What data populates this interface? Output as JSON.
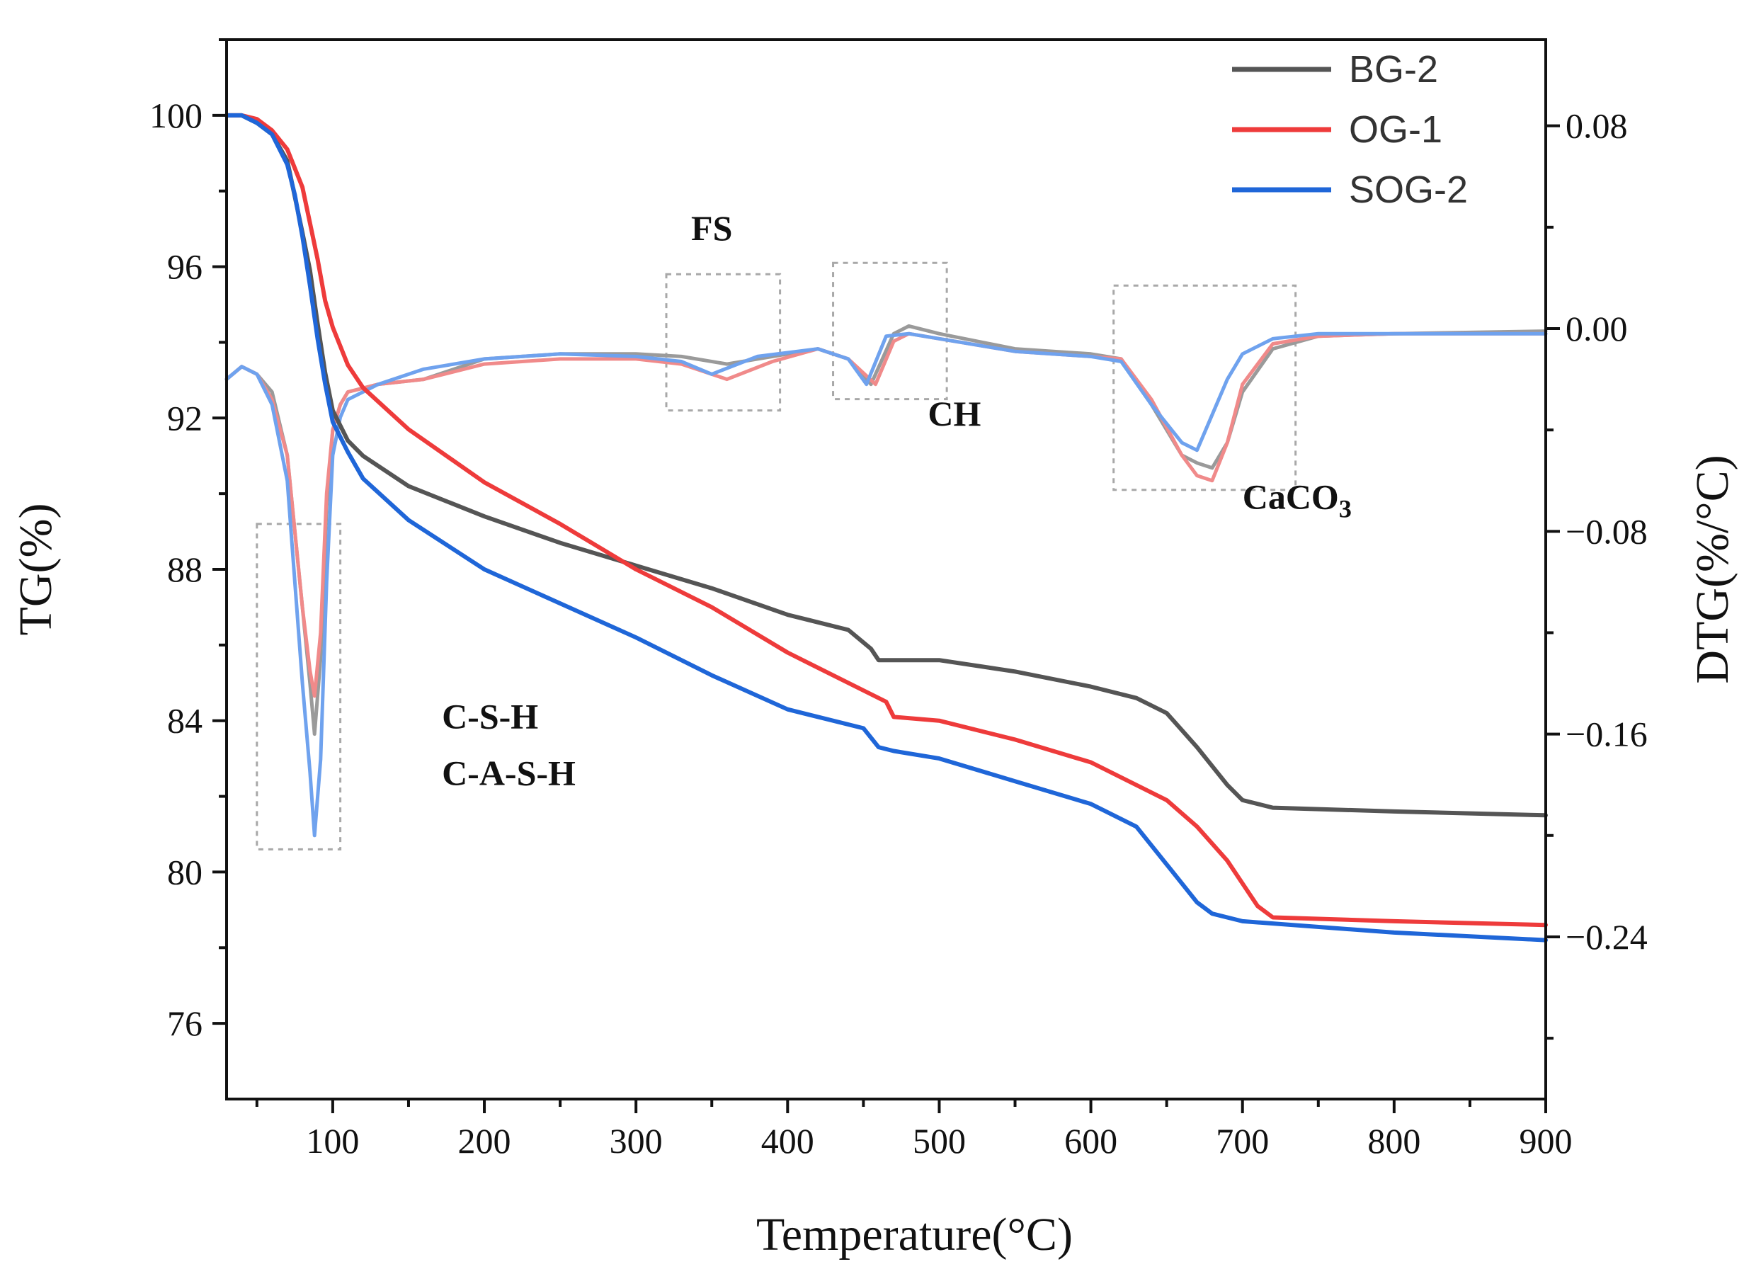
{
  "chart_data": {
    "type": "line",
    "xlabel": "Temperature(°C)",
    "ylabel_left": "TG(%)",
    "ylabel_right": "DTG(%/°C)",
    "xlim": [
      30,
      900
    ],
    "ylim_left": [
      74,
      102
    ],
    "ylim_right": [
      -0.304,
      0.114
    ],
    "x_ticks": [
      100,
      200,
      300,
      400,
      500,
      600,
      700,
      800,
      900
    ],
    "y_ticks_left": [
      76,
      80,
      84,
      88,
      92,
      96,
      100
    ],
    "y_ticks_right": [
      0.08,
      0.0,
      -0.08,
      -0.16,
      -0.24
    ],
    "y_tick_labels_right": [
      "0.08",
      "0.00",
      "−0.08",
      "−0.16",
      "−0.24"
    ],
    "legend": {
      "position": "top-right",
      "entries": [
        "BG-2",
        "OG-1",
        "SOG-2"
      ]
    },
    "series_colors": {
      "BG-2": "#555555",
      "OG-1": "#ee3b3b",
      "SOG-2": "#1f66d8"
    },
    "dtg_colors": {
      "BG-2": "#9a9a9a",
      "OG-1": "#f08a8a",
      "SOG-2": "#6fa2ee"
    },
    "series": [
      {
        "name": "BG-2",
        "axis": "left",
        "kind": "TG",
        "x": [
          30,
          40,
          50,
          60,
          70,
          80,
          85,
          90,
          95,
          100,
          110,
          120,
          150,
          200,
          250,
          300,
          350,
          400,
          440,
          455,
          460,
          500,
          550,
          600,
          630,
          650,
          670,
          690,
          700,
          720,
          800,
          900
        ],
        "y": [
          100.0,
          100.0,
          99.8,
          99.5,
          98.8,
          96.9,
          95.9,
          94.5,
          93.2,
          92.2,
          91.4,
          91.0,
          90.2,
          89.4,
          88.7,
          88.1,
          87.5,
          86.8,
          86.4,
          85.9,
          85.6,
          85.6,
          85.3,
          84.9,
          84.6,
          84.2,
          83.3,
          82.3,
          81.9,
          81.7,
          81.6,
          81.5
        ]
      },
      {
        "name": "OG-1",
        "axis": "left",
        "kind": "TG",
        "x": [
          30,
          40,
          50,
          60,
          70,
          80,
          90,
          95,
          100,
          110,
          120,
          150,
          200,
          250,
          300,
          350,
          400,
          450,
          465,
          470,
          500,
          550,
          600,
          650,
          670,
          690,
          700,
          710,
          720,
          800,
          900
        ],
        "y": [
          100.0,
          100.0,
          99.9,
          99.6,
          99.1,
          98.1,
          96.2,
          95.1,
          94.4,
          93.4,
          92.8,
          91.7,
          90.3,
          89.2,
          88.0,
          87.0,
          85.8,
          84.8,
          84.5,
          84.1,
          84.0,
          83.5,
          82.9,
          81.9,
          81.2,
          80.3,
          79.7,
          79.1,
          78.8,
          78.7,
          78.6
        ]
      },
      {
        "name": "SOG-2",
        "axis": "left",
        "kind": "TG",
        "x": [
          30,
          40,
          50,
          60,
          70,
          75,
          80,
          85,
          90,
          95,
          100,
          110,
          120,
          150,
          200,
          250,
          300,
          350,
          400,
          450,
          460,
          470,
          500,
          550,
          600,
          630,
          650,
          670,
          680,
          700,
          800,
          900
        ],
        "y": [
          100.0,
          100.0,
          99.8,
          99.5,
          98.7,
          97.9,
          96.8,
          95.5,
          94.1,
          92.9,
          91.9,
          91.1,
          90.4,
          89.3,
          88.0,
          87.1,
          86.2,
          85.2,
          84.3,
          83.8,
          83.3,
          83.2,
          83.0,
          82.4,
          81.8,
          81.2,
          80.2,
          79.2,
          78.9,
          78.7,
          78.4,
          78.2
        ]
      },
      {
        "name": "BG-2",
        "axis": "right",
        "kind": "DTG",
        "x": [
          30,
          40,
          50,
          60,
          70,
          75,
          80,
          85,
          88,
          92,
          96,
          100,
          105,
          110,
          130,
          160,
          200,
          250,
          300,
          330,
          360,
          390,
          420,
          440,
          455,
          470,
          480,
          500,
          550,
          600,
          620,
          640,
          660,
          670,
          680,
          690,
          700,
          720,
          750,
          800,
          900
        ],
        "y": [
          -0.02,
          -0.015,
          -0.018,
          -0.025,
          -0.05,
          -0.08,
          -0.11,
          -0.14,
          -0.16,
          -0.13,
          -0.07,
          -0.04,
          -0.03,
          -0.025,
          -0.022,
          -0.02,
          -0.012,
          -0.01,
          -0.01,
          -0.011,
          -0.014,
          -0.011,
          -0.008,
          -0.012,
          -0.022,
          -0.002,
          0.001,
          -0.002,
          -0.008,
          -0.01,
          -0.012,
          -0.03,
          -0.05,
          -0.053,
          -0.055,
          -0.045,
          -0.025,
          -0.008,
          -0.003,
          -0.002,
          -0.001
        ]
      },
      {
        "name": "OG-1",
        "axis": "right",
        "kind": "DTG",
        "x": [
          30,
          40,
          50,
          60,
          70,
          75,
          80,
          85,
          88,
          92,
          96,
          100,
          105,
          110,
          130,
          160,
          200,
          250,
          300,
          330,
          360,
          390,
          420,
          440,
          458,
          470,
          480,
          500,
          550,
          600,
          620,
          640,
          660,
          670,
          680,
          690,
          700,
          720,
          750,
          800,
          900
        ],
        "y": [
          -0.02,
          -0.015,
          -0.018,
          -0.028,
          -0.05,
          -0.08,
          -0.11,
          -0.135,
          -0.145,
          -0.12,
          -0.065,
          -0.04,
          -0.03,
          -0.025,
          -0.022,
          -0.02,
          -0.014,
          -0.012,
          -0.012,
          -0.014,
          -0.02,
          -0.013,
          -0.008,
          -0.012,
          -0.022,
          -0.005,
          -0.002,
          -0.004,
          -0.009,
          -0.011,
          -0.012,
          -0.028,
          -0.05,
          -0.058,
          -0.06,
          -0.045,
          -0.022,
          -0.006,
          -0.003,
          -0.002,
          -0.002
        ]
      },
      {
        "name": "SOG-2",
        "axis": "right",
        "kind": "DTG",
        "x": [
          30,
          40,
          50,
          60,
          70,
          75,
          80,
          85,
          88,
          92,
          96,
          100,
          105,
          110,
          130,
          160,
          200,
          250,
          300,
          330,
          350,
          380,
          420,
          440,
          452,
          465,
          480,
          500,
          550,
          600,
          620,
          640,
          660,
          670,
          690,
          700,
          720,
          750,
          800,
          900
        ],
        "y": [
          -0.02,
          -0.015,
          -0.018,
          -0.03,
          -0.06,
          -0.1,
          -0.14,
          -0.175,
          -0.2,
          -0.17,
          -0.1,
          -0.05,
          -0.035,
          -0.028,
          -0.022,
          -0.016,
          -0.012,
          -0.01,
          -0.011,
          -0.013,
          -0.018,
          -0.011,
          -0.008,
          -0.012,
          -0.022,
          -0.003,
          -0.002,
          -0.004,
          -0.009,
          -0.011,
          -0.013,
          -0.03,
          -0.045,
          -0.048,
          -0.02,
          -0.01,
          -0.004,
          -0.002,
          -0.002,
          -0.002
        ]
      }
    ],
    "annotations": [
      {
        "text": "FS",
        "x": 350,
        "y_left": 96.7
      },
      {
        "text": "CH",
        "x": 510,
        "y_left": 91.8
      },
      {
        "text": "C-S-H",
        "x": 172,
        "y_left": 83.8
      },
      {
        "text": "C-A-S-H",
        "x": 172,
        "y_left": 82.3
      }
    ],
    "caco3_label": {
      "main": "CaCO",
      "sub": "3",
      "x": 700,
      "y_left": 89.6
    },
    "highlight_boxes": [
      {
        "x": [
          50,
          105
        ],
        "y_left": [
          80.6,
          89.2
        ]
      },
      {
        "x": [
          320,
          395
        ],
        "y_left": [
          92.2,
          95.8
        ]
      },
      {
        "x": [
          430,
          505
        ],
        "y_left": [
          92.5,
          96.1
        ]
      },
      {
        "x": [
          615,
          735
        ],
        "y_left": [
          90.1,
          95.5
        ]
      }
    ]
  }
}
